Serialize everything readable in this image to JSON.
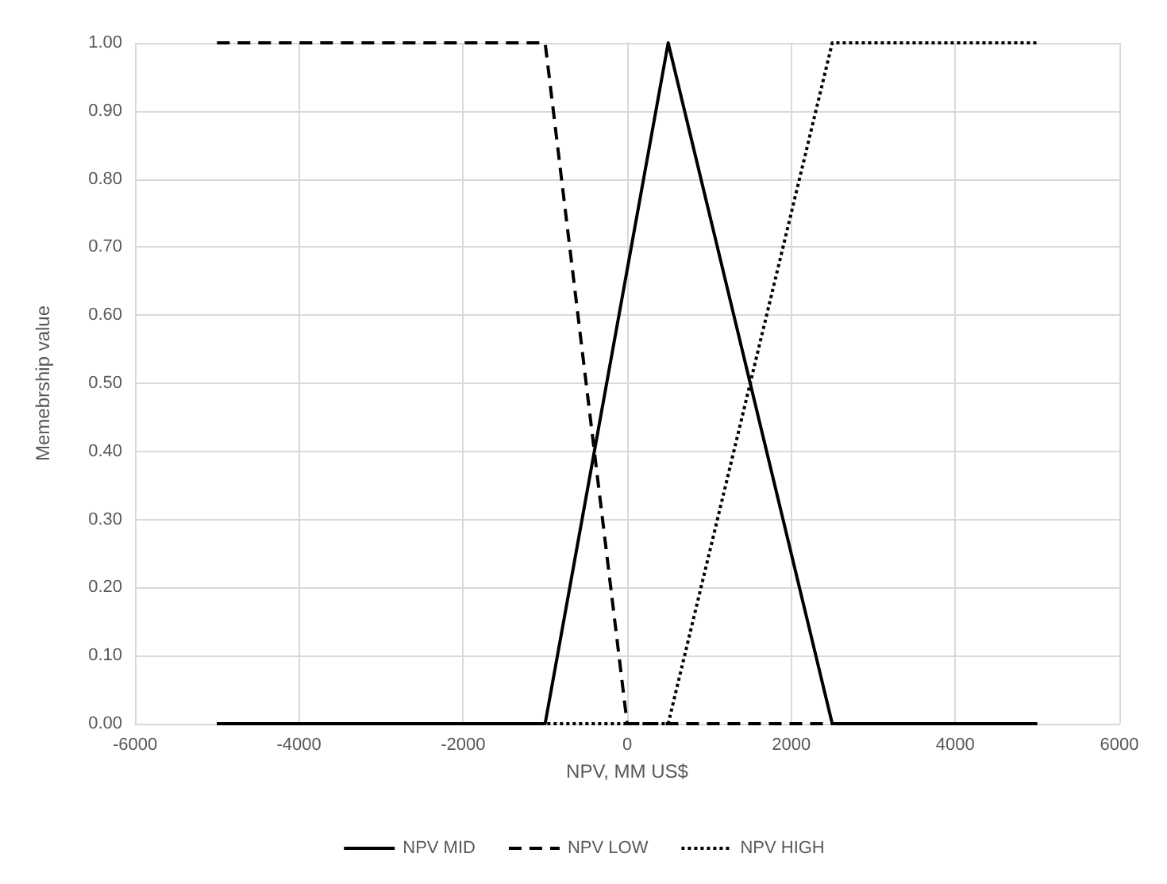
{
  "chart_data": {
    "type": "line",
    "xlabel": "NPV, MM US$",
    "ylabel": "Memebrship value",
    "xlim": [
      -6000,
      6000
    ],
    "xticks": [
      -6000,
      -4000,
      -2000,
      0,
      2000,
      4000,
      6000
    ],
    "ylim": [
      0,
      1
    ],
    "yticks": [
      {
        "value": 0,
        "label": "0.00"
      },
      {
        "value": 0.1,
        "label": "0.10"
      },
      {
        "value": 0.2,
        "label": "0.20"
      },
      {
        "value": 0.3,
        "label": "0.30"
      },
      {
        "value": 0.4,
        "label": "0.40"
      },
      {
        "value": 0.5,
        "label": "0.50"
      },
      {
        "value": 0.6,
        "label": "0.60"
      },
      {
        "value": 0.7,
        "label": "0.70"
      },
      {
        "value": 0.8,
        "label": "0.80"
      },
      {
        "value": 0.9,
        "label": "0.90"
      },
      {
        "value": 1,
        "label": "1.00"
      }
    ],
    "grid": true,
    "legend": "bottom",
    "marker": "none",
    "series": [
      {
        "name": "NPV MID",
        "color": "#000000",
        "line_style": "solid",
        "x": [
          -5000,
          -1000,
          500,
          2500,
          5000
        ],
        "values": [
          0,
          0,
          1,
          0,
          0
        ]
      },
      {
        "name": "NPV LOW",
        "color": "#000000",
        "line_style": "dashed",
        "x": [
          -5000,
          -1000,
          0,
          2500
        ],
        "values": [
          1,
          1,
          0,
          0
        ]
      },
      {
        "name": "NPV HIGH",
        "color": "#000000",
        "line_style": "dotted",
        "x": [
          -5000,
          500,
          2500,
          5000
        ],
        "values": [
          0,
          0,
          1,
          1
        ]
      }
    ]
  }
}
